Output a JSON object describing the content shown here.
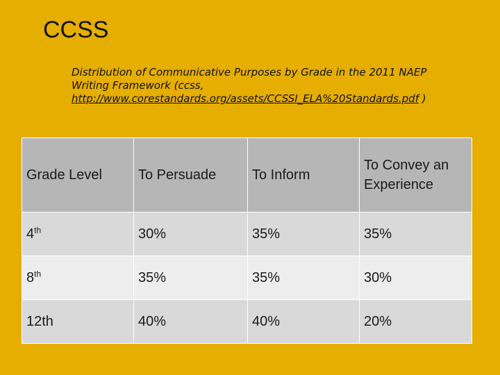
{
  "slide": {
    "title": "CCSS",
    "subtitle_text": "Distribution of Communicative Purposes by Grade in the 2011 NAEP Writing Framework (ccss, ",
    "subtitle_link": "http://www.corestandards.org/assets/CCSSI_ELA%20Standards.pdf",
    "subtitle_end": " )"
  },
  "table": {
    "headers": [
      "Grade Level",
      "To Persuade",
      "To Inform",
      "To Convey an Experience"
    ],
    "rows": [
      {
        "grade": "4",
        "grade_suffix": "th",
        "persuade": "30%",
        "inform": "35%",
        "convey": "35%"
      },
      {
        "grade": "8",
        "grade_suffix": "th",
        "persuade": "35%",
        "inform": "35%",
        "convey": "30%"
      },
      {
        "grade": "12th",
        "grade_suffix": "",
        "persuade": "40%",
        "inform": "40%",
        "convey": "20%"
      }
    ]
  },
  "colors": {
    "background": "#E5AE00",
    "header_fill": "#B6B6B6",
    "row_fill_dark": "#D9D9D9",
    "row_fill_light": "#EDEDED"
  }
}
